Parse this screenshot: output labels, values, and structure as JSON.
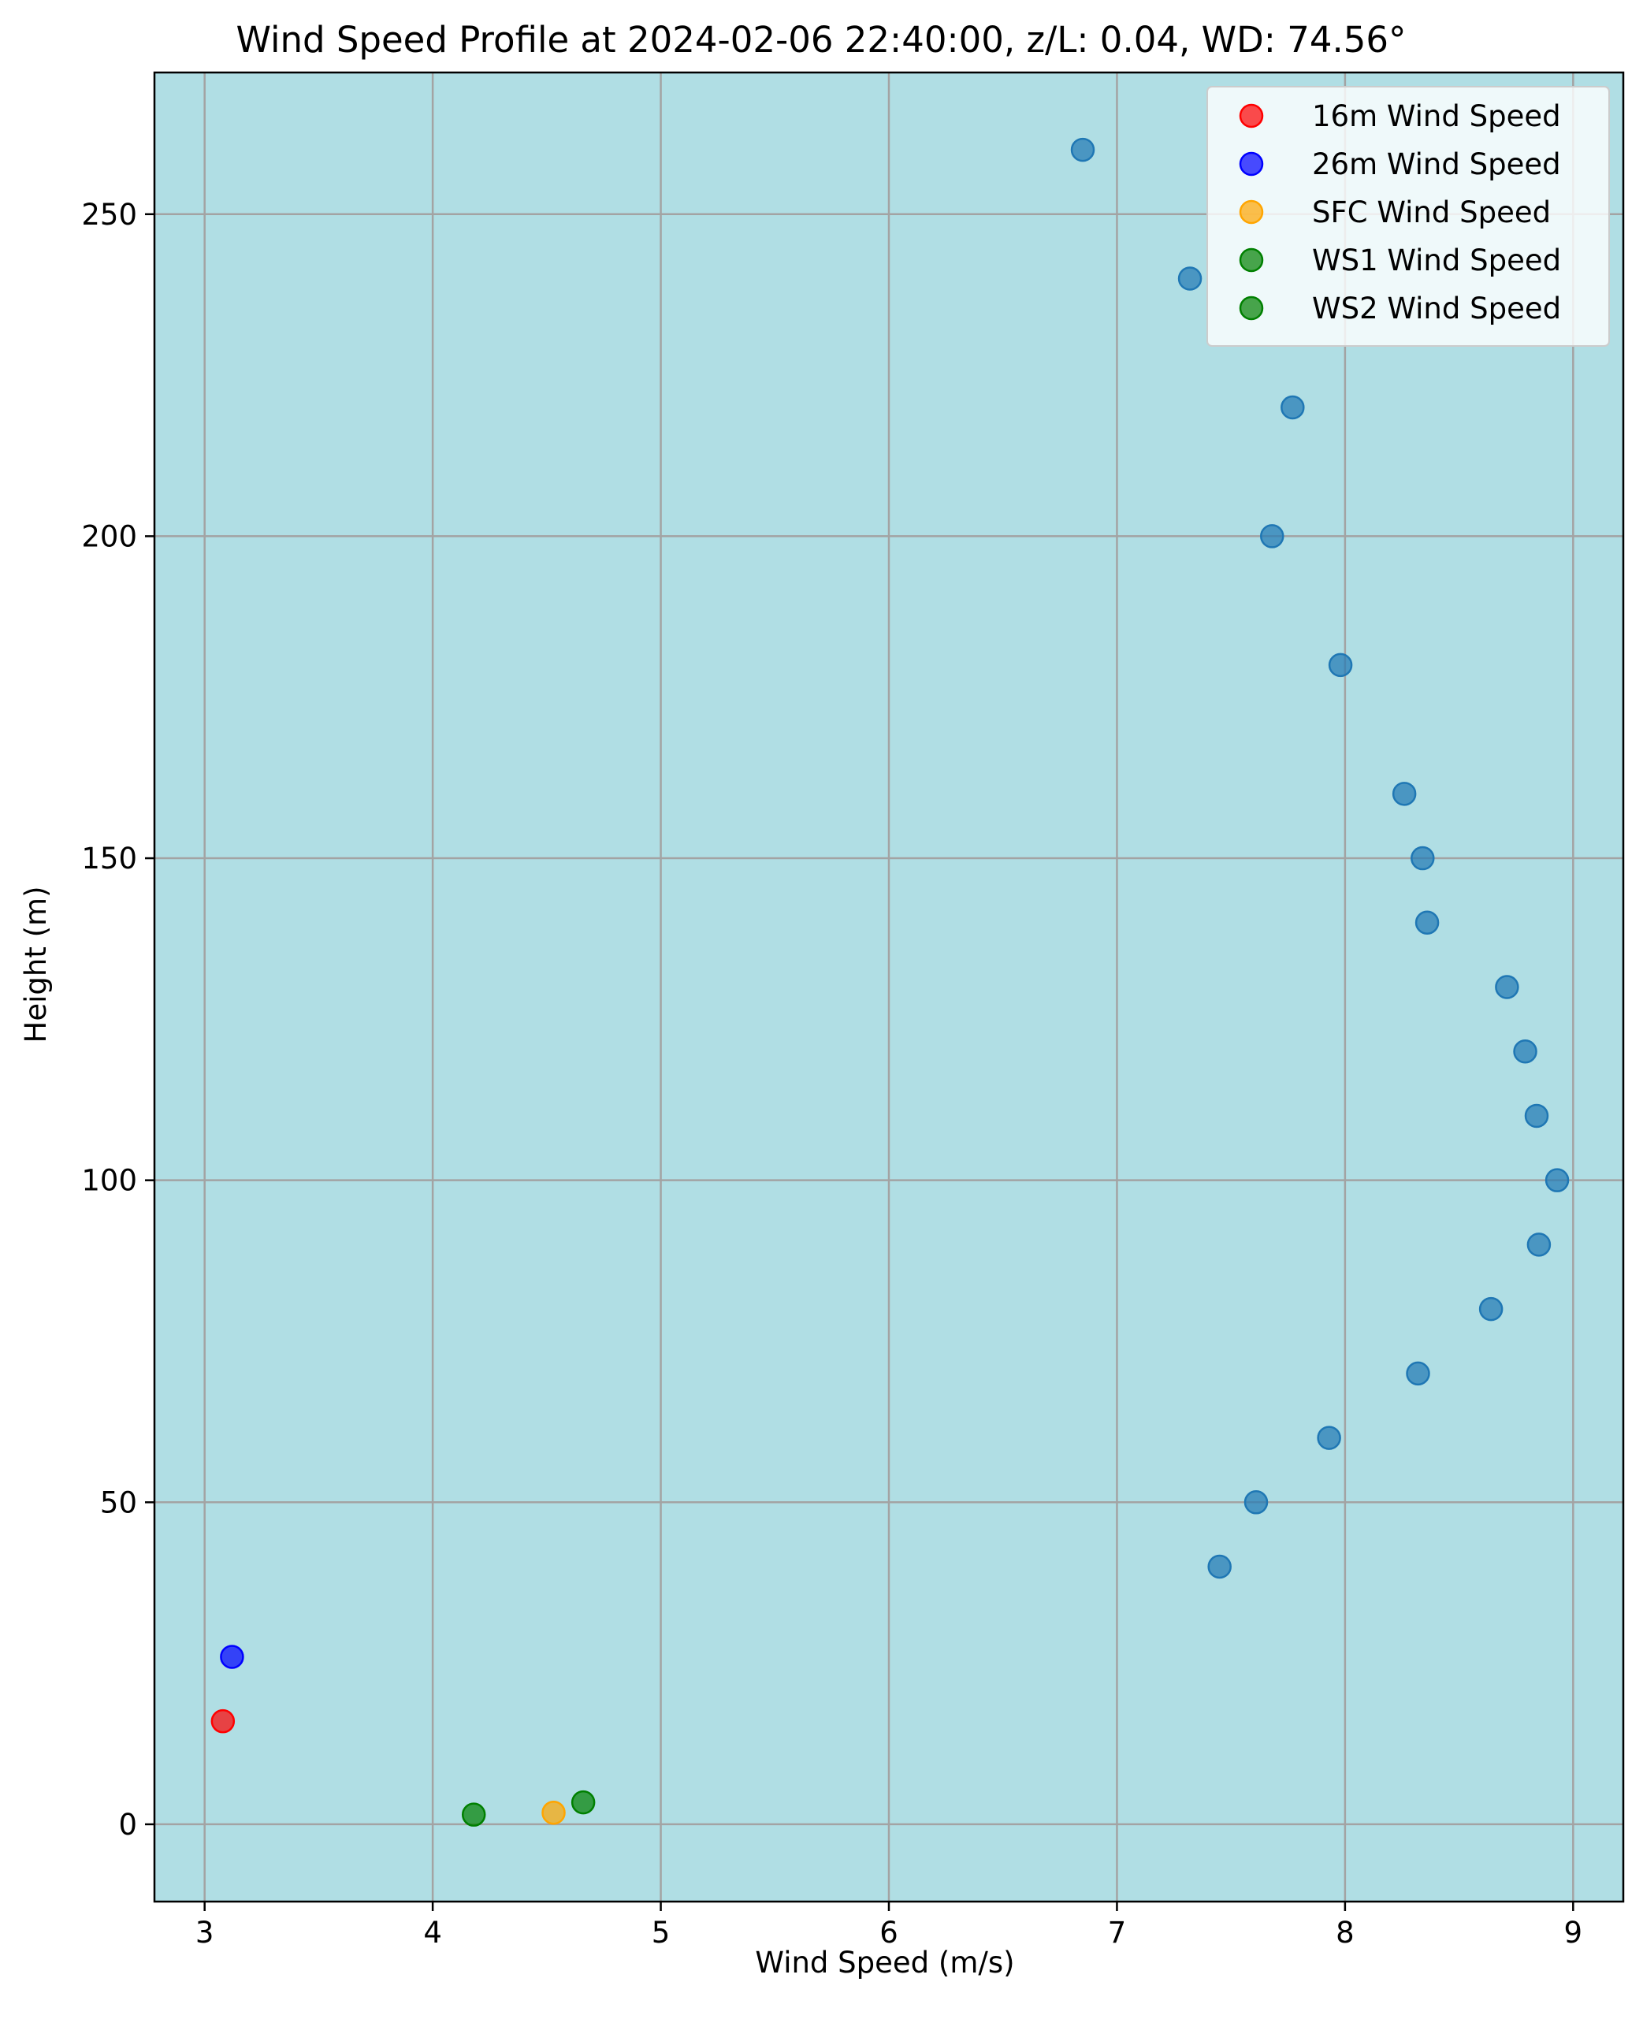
{
  "chart_data": {
    "type": "scatter",
    "title": "Wind Speed Profile at 2024-02-06 22:40:00, z/L: 0.04, WD: 74.56°",
    "xlabel": "Wind Speed (m/s)",
    "ylabel": "Height (m)",
    "xlim": [
      2.78,
      9.22
    ],
    "ylim": [
      -12,
      272
    ],
    "xticks": [
      3,
      4,
      5,
      6,
      7,
      8,
      9
    ],
    "yticks": [
      0,
      50,
      100,
      150,
      200,
      250
    ],
    "grid": true,
    "legend_position": "top-right",
    "background_color": "#b0dee4",
    "series": [
      {
        "name": "",
        "color": "#1f77b4",
        "in_legend": false,
        "points": [
          {
            "x": 7.45,
            "y": 40
          },
          {
            "x": 7.61,
            "y": 50
          },
          {
            "x": 7.93,
            "y": 60
          },
          {
            "x": 8.32,
            "y": 70
          },
          {
            "x": 8.64,
            "y": 80
          },
          {
            "x": 8.85,
            "y": 90
          },
          {
            "x": 8.93,
            "y": 100
          },
          {
            "x": 8.84,
            "y": 110
          },
          {
            "x": 8.79,
            "y": 120
          },
          {
            "x": 8.71,
            "y": 130
          },
          {
            "x": 8.36,
            "y": 140
          },
          {
            "x": 8.34,
            "y": 150
          },
          {
            "x": 8.26,
            "y": 160
          },
          {
            "x": 7.98,
            "y": 180
          },
          {
            "x": 7.68,
            "y": 200
          },
          {
            "x": 7.77,
            "y": 220
          },
          {
            "x": 7.32,
            "y": 240
          },
          {
            "x": 6.85,
            "y": 260
          }
        ]
      },
      {
        "name": "16m Wind Speed",
        "color": "#ff0000",
        "in_legend": true,
        "points": [
          {
            "x": 3.08,
            "y": 16
          }
        ]
      },
      {
        "name": "26m Wind Speed",
        "color": "#0000ff",
        "in_legend": true,
        "points": [
          {
            "x": 3.12,
            "y": 26
          }
        ]
      },
      {
        "name": "SFC Wind Speed",
        "color": "#ffa500",
        "in_legend": true,
        "points": [
          {
            "x": 4.53,
            "y": 1.8
          }
        ]
      },
      {
        "name": "WS1 Wind Speed",
        "color": "#008000",
        "in_legend": true,
        "points": [
          {
            "x": 4.18,
            "y": 1.5
          }
        ]
      },
      {
        "name": "WS2 Wind Speed",
        "color": "#008000",
        "in_legend": true,
        "points": [
          {
            "x": 4.66,
            "y": 3.4
          }
        ]
      }
    ]
  }
}
